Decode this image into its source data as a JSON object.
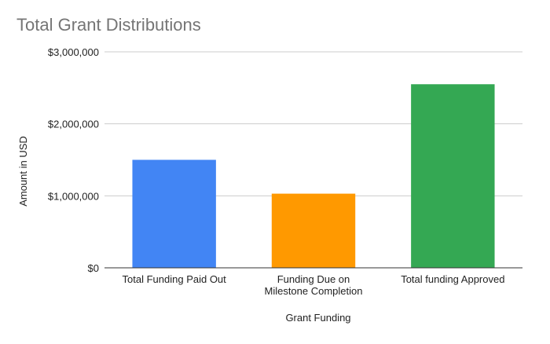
{
  "chart_data": {
    "type": "bar",
    "title": "Total Grant Distributions",
    "xlabel": "Grant Funding",
    "ylabel": "Amount in USD",
    "categories": [
      [
        "Total Funding Paid Out"
      ],
      [
        "Funding Due on",
        "Milestone Completion"
      ],
      [
        "Total funding Approved"
      ]
    ],
    "values": [
      1500000,
      1030000,
      2550000
    ],
    "colors": [
      "#4285f4",
      "#ff9900",
      "#34a853"
    ],
    "ylim": [
      0,
      3000000
    ],
    "yticks": [
      0,
      1000000,
      2000000,
      3000000
    ],
    "ytick_labels": [
      "$0",
      "$1,000,000",
      "$2,000,000",
      "$3,000,000"
    ],
    "grid": true,
    "legend": "none"
  }
}
